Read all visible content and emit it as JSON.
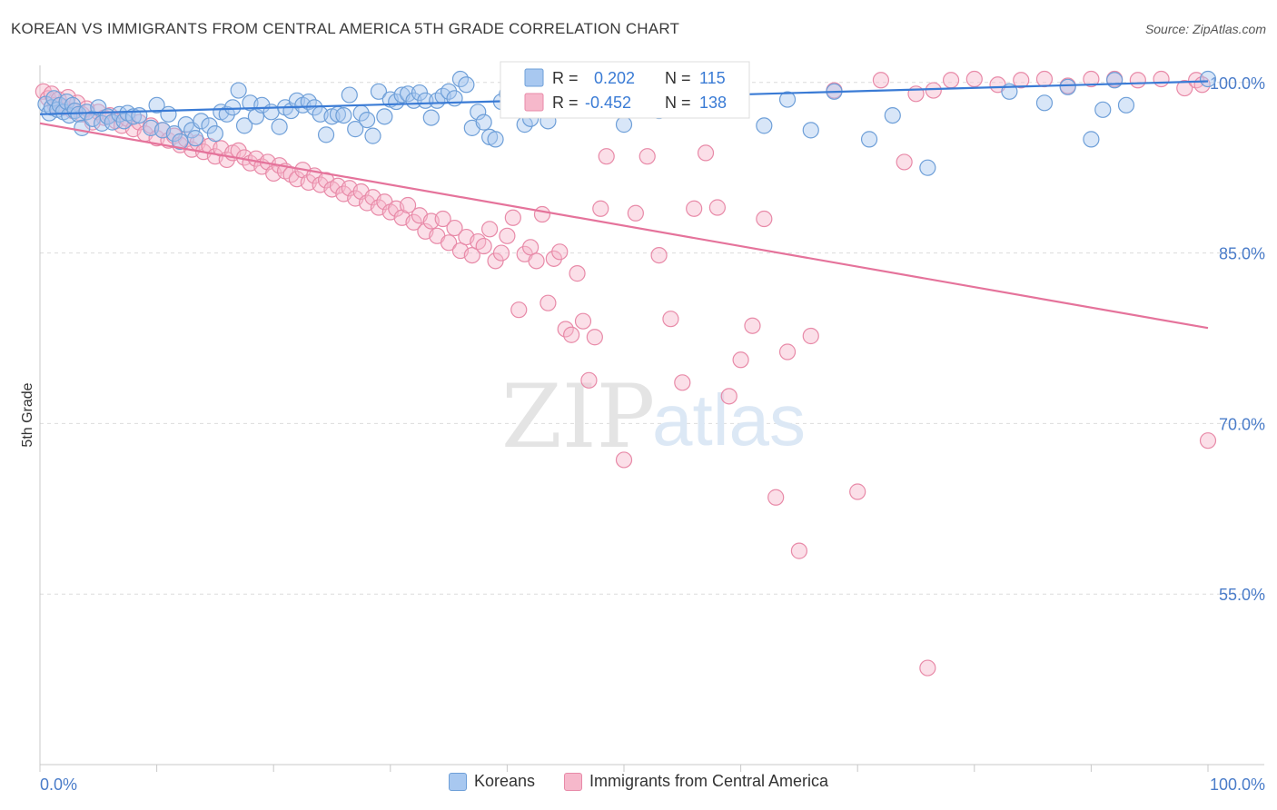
{
  "title": "KOREAN VS IMMIGRANTS FROM CENTRAL AMERICA 5TH GRADE CORRELATION CHART",
  "source": "Source: ZipAtlas.com",
  "watermark": {
    "zip": "ZIP",
    "atlas": "atlas"
  },
  "colors": {
    "koreans_fill": "#a8c8f0",
    "koreans_stroke": "#6e9fd8",
    "koreans_line": "#3a7bd5",
    "immigrants_fill": "#f6b8cb",
    "immigrants_stroke": "#e88aa8",
    "immigrants_line": "#e5739b",
    "axis_label": "#4a7cc9",
    "grid": "#dcdcdc"
  },
  "stats": {
    "koreans": {
      "r_label": "R =",
      "r_value": "0.202",
      "n_label": "N =",
      "n_value": "115"
    },
    "immigrants": {
      "r_label": "R =",
      "r_value": "-0.452",
      "n_label": "N =",
      "n_value": "138"
    }
  },
  "chart_data": {
    "type": "scatter",
    "title": "KOREAN VS IMMIGRANTS FROM CENTRAL AMERICA 5TH GRADE CORRELATION CHART",
    "xlabel": "",
    "ylabel": "5th Grade",
    "xlim": [
      0,
      100
    ],
    "ylim": [
      40,
      101.5
    ],
    "x_tick_labels": [
      "0.0%",
      "100.0%"
    ],
    "y_ticks": [
      100,
      85,
      70,
      55
    ],
    "y_tick_labels": [
      "100.0%",
      "85.0%",
      "70.0%",
      "55.0%"
    ],
    "grid": "horizontal dashed",
    "legend_placement": "bottom-center",
    "series": [
      {
        "name": "Koreans",
        "trend": {
          "x": [
            0,
            100
          ],
          "y": [
            97.2,
            100.1
          ]
        },
        "points": [
          [
            0.5,
            98.1
          ],
          [
            0.8,
            97.3
          ],
          [
            1.0,
            97.8
          ],
          [
            1.2,
            98.6
          ],
          [
            1.5,
            97.6
          ],
          [
            1.7,
            98.0
          ],
          [
            2.0,
            97.4
          ],
          [
            2.3,
            98.3
          ],
          [
            2.5,
            97.1
          ],
          [
            2.8,
            98.0
          ],
          [
            3.0,
            97.5
          ],
          [
            3.3,
            97.2
          ],
          [
            3.6,
            96.0
          ],
          [
            4.0,
            97.4
          ],
          [
            4.5,
            96.8
          ],
          [
            5.0,
            97.8
          ],
          [
            5.3,
            96.4
          ],
          [
            5.8,
            97.0
          ],
          [
            6.2,
            96.5
          ],
          [
            6.8,
            97.2
          ],
          [
            7.2,
            96.6
          ],
          [
            7.5,
            97.3
          ],
          [
            8.0,
            97.0
          ],
          [
            8.5,
            97.1
          ],
          [
            9.5,
            96.0
          ],
          [
            10.0,
            98.0
          ],
          [
            10.5,
            95.8
          ],
          [
            11.0,
            97.2
          ],
          [
            11.5,
            95.5
          ],
          [
            12.0,
            94.8
          ],
          [
            12.5,
            96.3
          ],
          [
            13.0,
            95.8
          ],
          [
            13.3,
            95.1
          ],
          [
            13.8,
            96.6
          ],
          [
            14.5,
            96.2
          ],
          [
            15.0,
            95.5
          ],
          [
            15.5,
            97.4
          ],
          [
            16.0,
            97.2
          ],
          [
            16.5,
            97.8
          ],
          [
            17.0,
            99.3
          ],
          [
            17.5,
            96.2
          ],
          [
            18.0,
            98.2
          ],
          [
            18.5,
            97.0
          ],
          [
            19.0,
            98.0
          ],
          [
            19.8,
            97.4
          ],
          [
            20.5,
            96.1
          ],
          [
            21.0,
            97.8
          ],
          [
            21.5,
            97.5
          ],
          [
            22.0,
            98.4
          ],
          [
            22.5,
            98.0
          ],
          [
            23.0,
            98.3
          ],
          [
            23.5,
            97.8
          ],
          [
            24.0,
            97.2
          ],
          [
            24.5,
            95.4
          ],
          [
            25.0,
            97.0
          ],
          [
            25.5,
            97.2
          ],
          [
            26.0,
            97.1
          ],
          [
            26.5,
            98.9
          ],
          [
            27.0,
            95.9
          ],
          [
            27.5,
            97.3
          ],
          [
            28.0,
            96.7
          ],
          [
            28.5,
            95.3
          ],
          [
            29.0,
            99.2
          ],
          [
            29.5,
            97.0
          ],
          [
            30.0,
            98.5
          ],
          [
            30.5,
            98.3
          ],
          [
            31.0,
            98.9
          ],
          [
            31.5,
            99.0
          ],
          [
            32.0,
            98.4
          ],
          [
            32.5,
            99.1
          ],
          [
            33.0,
            98.4
          ],
          [
            33.5,
            96.9
          ],
          [
            34.0,
            98.4
          ],
          [
            34.5,
            98.8
          ],
          [
            35.0,
            99.2
          ],
          [
            35.5,
            98.6
          ],
          [
            36.0,
            100.3
          ],
          [
            36.5,
            99.8
          ],
          [
            37.0,
            96.0
          ],
          [
            37.5,
            97.4
          ],
          [
            38.0,
            96.5
          ],
          [
            38.5,
            95.2
          ],
          [
            39.0,
            95.0
          ],
          [
            39.5,
            98.3
          ],
          [
            40.0,
            99.0
          ],
          [
            40.5,
            99.7
          ],
          [
            41.0,
            100.3
          ],
          [
            41.5,
            96.3
          ],
          [
            42.0,
            96.8
          ],
          [
            42.5,
            97.9
          ],
          [
            43.0,
            98.8
          ],
          [
            43.5,
            96.6
          ],
          [
            44.0,
            98.2
          ],
          [
            44.5,
            98.1
          ],
          [
            45.0,
            97.8
          ],
          [
            45.5,
            97.9
          ],
          [
            46.0,
            98.7
          ],
          [
            47.0,
            99.5
          ],
          [
            48.0,
            100.2
          ],
          [
            48.5,
            99.6
          ],
          [
            50.0,
            96.3
          ],
          [
            51.0,
            98.9
          ],
          [
            53.0,
            97.5
          ],
          [
            55.0,
            99.0
          ],
          [
            58.0,
            98.5
          ],
          [
            62.0,
            96.2
          ],
          [
            64.0,
            98.5
          ],
          [
            66.0,
            95.8
          ],
          [
            68.0,
            99.2
          ],
          [
            71.0,
            95.0
          ],
          [
            73.0,
            97.1
          ],
          [
            76.0,
            92.5
          ],
          [
            83.0,
            99.2
          ],
          [
            86.0,
            98.2
          ],
          [
            88.0,
            99.6
          ],
          [
            90.0,
            95.0
          ],
          [
            91.0,
            97.6
          ],
          [
            92.0,
            100.2
          ],
          [
            93.0,
            98.0
          ],
          [
            100.0,
            100.3
          ]
        ]
      },
      {
        "name": "Immigrants from Central America",
        "trend": {
          "x": [
            0,
            100
          ],
          "y": [
            96.4,
            78.4
          ]
        },
        "points": [
          [
            0.3,
            99.2
          ],
          [
            0.7,
            98.6
          ],
          [
            1.0,
            99.0
          ],
          [
            1.3,
            98.0
          ],
          [
            1.6,
            98.5
          ],
          [
            2.0,
            97.8
          ],
          [
            2.4,
            98.7
          ],
          [
            2.8,
            97.5
          ],
          [
            3.2,
            98.2
          ],
          [
            3.6,
            97.2
          ],
          [
            4.0,
            97.7
          ],
          [
            4.5,
            96.5
          ],
          [
            5.0,
            97.4
          ],
          [
            5.5,
            96.9
          ],
          [
            6.0,
            97.1
          ],
          [
            6.5,
            96.6
          ],
          [
            7.0,
            96.2
          ],
          [
            7.5,
            96.8
          ],
          [
            8.0,
            95.9
          ],
          [
            8.5,
            96.5
          ],
          [
            9.0,
            95.5
          ],
          [
            9.5,
            96.2
          ],
          [
            10.0,
            95.1
          ],
          [
            10.5,
            95.8
          ],
          [
            11.0,
            94.9
          ],
          [
            11.5,
            95.3
          ],
          [
            12.0,
            94.5
          ],
          [
            12.5,
            95.0
          ],
          [
            13.0,
            94.1
          ],
          [
            13.5,
            94.7
          ],
          [
            14.0,
            93.9
          ],
          [
            14.5,
            94.4
          ],
          [
            15.0,
            93.5
          ],
          [
            15.5,
            94.2
          ],
          [
            16.0,
            93.2
          ],
          [
            16.5,
            93.8
          ],
          [
            17.0,
            94.0
          ],
          [
            17.5,
            93.4
          ],
          [
            18.0,
            92.9
          ],
          [
            18.5,
            93.3
          ],
          [
            19.0,
            92.6
          ],
          [
            19.5,
            93.0
          ],
          [
            20.0,
            92.0
          ],
          [
            20.5,
            92.7
          ],
          [
            21.0,
            92.2
          ],
          [
            21.5,
            91.9
          ],
          [
            22.0,
            91.5
          ],
          [
            22.5,
            92.3
          ],
          [
            23.0,
            91.2
          ],
          [
            23.5,
            91.8
          ],
          [
            24.0,
            91.0
          ],
          [
            24.5,
            91.4
          ],
          [
            25.0,
            90.6
          ],
          [
            25.5,
            90.9
          ],
          [
            26.0,
            90.2
          ],
          [
            26.5,
            90.7
          ],
          [
            27.0,
            89.8
          ],
          [
            27.5,
            90.4
          ],
          [
            28.0,
            89.4
          ],
          [
            28.5,
            89.9
          ],
          [
            29.0,
            89.0
          ],
          [
            29.5,
            89.5
          ],
          [
            30.0,
            88.6
          ],
          [
            30.5,
            88.9
          ],
          [
            31.0,
            88.1
          ],
          [
            31.5,
            89.2
          ],
          [
            32.0,
            87.7
          ],
          [
            32.5,
            88.3
          ],
          [
            33.0,
            86.9
          ],
          [
            33.5,
            87.8
          ],
          [
            34.0,
            86.5
          ],
          [
            34.5,
            88.0
          ],
          [
            35.0,
            85.9
          ],
          [
            35.5,
            87.2
          ],
          [
            36.0,
            85.2
          ],
          [
            36.5,
            86.4
          ],
          [
            37.0,
            84.8
          ],
          [
            37.5,
            86.0
          ],
          [
            38.0,
            85.6
          ],
          [
            38.5,
            87.1
          ],
          [
            39.0,
            84.3
          ],
          [
            39.5,
            85.0
          ],
          [
            40.0,
            86.5
          ],
          [
            40.5,
            88.1
          ],
          [
            41.0,
            80.0
          ],
          [
            41.5,
            84.9
          ],
          [
            42.0,
            85.5
          ],
          [
            42.5,
            84.3
          ],
          [
            43.0,
            88.4
          ],
          [
            43.5,
            80.6
          ],
          [
            44.0,
            84.5
          ],
          [
            44.5,
            85.1
          ],
          [
            45.0,
            78.3
          ],
          [
            45.5,
            77.8
          ],
          [
            46.0,
            83.2
          ],
          [
            46.5,
            79.0
          ],
          [
            47.0,
            73.8
          ],
          [
            47.5,
            77.6
          ],
          [
            48.0,
            88.9
          ],
          [
            48.5,
            93.5
          ],
          [
            50.0,
            66.8
          ],
          [
            51.0,
            88.5
          ],
          [
            52.0,
            93.5
          ],
          [
            53.0,
            84.8
          ],
          [
            54.0,
            79.2
          ],
          [
            55.0,
            73.6
          ],
          [
            56.0,
            88.9
          ],
          [
            57.0,
            93.8
          ],
          [
            58.0,
            89.0
          ],
          [
            59.0,
            72.4
          ],
          [
            60.0,
            75.6
          ],
          [
            61.0,
            78.6
          ],
          [
            62.0,
            88.0
          ],
          [
            63.0,
            63.5
          ],
          [
            64.0,
            76.3
          ],
          [
            65.0,
            58.8
          ],
          [
            66.0,
            77.7
          ],
          [
            68.0,
            99.3
          ],
          [
            70.0,
            64.0
          ],
          [
            72.0,
            100.2
          ],
          [
            74.0,
            93.0
          ],
          [
            75.0,
            99.0
          ],
          [
            76.0,
            48.5
          ],
          [
            78.0,
            100.2
          ],
          [
            80.0,
            100.3
          ],
          [
            82.0,
            99.8
          ],
          [
            84.0,
            100.2
          ],
          [
            86.0,
            100.3
          ],
          [
            88.0,
            99.7
          ],
          [
            90.0,
            100.3
          ],
          [
            92.0,
            100.3
          ],
          [
            94.0,
            100.2
          ],
          [
            96.0,
            100.3
          ],
          [
            98.0,
            99.5
          ],
          [
            99.0,
            100.2
          ],
          [
            99.5,
            99.8
          ],
          [
            100.0,
            68.5
          ],
          [
            76.5,
            99.3
          ]
        ]
      }
    ]
  }
}
